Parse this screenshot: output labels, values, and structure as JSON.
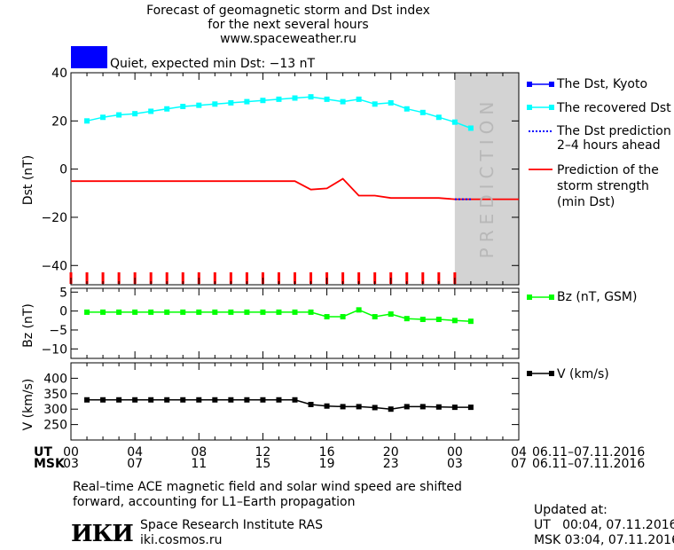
{
  "header": {
    "title_line1": "Forecast of geomagnetic storm and Dst index",
    "title_line2": "for the next several hours",
    "website": "www.spaceweather.ru",
    "status_color": "#0000ff",
    "status_text": "Quiet, expected min Dst: −13 nT"
  },
  "legend": {
    "dst_kyoto": "The Dst, Kyoto",
    "recovered_dst": "The recovered Dst",
    "dst_prediction_line1": "The Dst prediction",
    "dst_prediction_line2": "2–4 hours ahead",
    "storm_line1": "Prediction of the",
    "storm_line2": "storm strength",
    "storm_line3": "(min Dst)",
    "bz": "Bz (nT, GSM)",
    "v": "V (km/s)"
  },
  "prediction_label": "PREDICTION",
  "time_axis": {
    "ut_label": "UT",
    "msk_label": "MSK",
    "ut_ticks": [
      "00",
      "04",
      "08",
      "12",
      "16",
      "20",
      "00",
      "04"
    ],
    "msk_ticks": [
      "03",
      "07",
      "11",
      "15",
      "19",
      "23",
      "03",
      "07"
    ],
    "ut_range": "06.11–07.11.2016",
    "msk_range": "06.11–07.11.2016"
  },
  "footer": {
    "note_line1": "Real–time ACE magnetic field and solar wind speed are shifted",
    "note_line2": "forward, accounting for L1–Earth propagation",
    "logo_text": "ИКИ",
    "institute": "Space Research Institute RAS",
    "institute_url": "iki.cosmos.ru",
    "updated_label": "Updated at:",
    "updated_ut": "UT   00:04, 07.11.2016",
    "updated_msk": "MSK 03:04, 07.11.2016"
  },
  "colors": {
    "recovered_dst": "#00ffff",
    "storm_strength": "#ff0000",
    "dst_kyoto": "#0000ff",
    "dst_prediction": "#0000ff",
    "bz": "#00ff00",
    "v": "#000000",
    "prediction_shade": "#d3d3d3"
  },
  "chart_data": [
    {
      "type": "line",
      "ylabel": "Dst (nT)",
      "ylim": [
        -48,
        40
      ],
      "yticks": [
        40,
        20,
        0,
        -20,
        -40
      ],
      "xlim": [
        0,
        28
      ],
      "prediction_start": 24,
      "series": [
        {
          "name": "The recovered Dst",
          "x": [
            1,
            2,
            3,
            4,
            5,
            6,
            7,
            8,
            9,
            10,
            11,
            12,
            13,
            14,
            15,
            16,
            17,
            18,
            19,
            20,
            21,
            22,
            23,
            24,
            25
          ],
          "y": [
            20,
            21.5,
            22.5,
            23,
            24,
            25,
            26,
            26.5,
            27,
            27.5,
            28,
            28.5,
            29,
            29.5,
            30,
            29,
            28,
            29,
            27,
            27.5,
            25,
            23.5,
            21.5,
            19.5,
            17
          ]
        },
        {
          "name": "Prediction of the storm strength (min Dst)",
          "x": [
            0,
            14,
            15,
            16,
            17,
            18,
            19,
            20,
            21,
            22,
            23,
            24,
            25,
            26,
            27,
            28
          ],
          "y": [
            -5,
            -5,
            -8.5,
            -8,
            -4,
            -11,
            -11,
            -12,
            -12,
            -12,
            -12,
            -12.5,
            -12.5,
            -12.5,
            -12.5,
            -12.5
          ]
        },
        {
          "name": "The Dst prediction 2–4 hours ahead",
          "x": [
            24,
            25
          ],
          "y": [
            -12.5,
            -12.5
          ]
        }
      ],
      "storm_marks_x": [
        0,
        1,
        2,
        3,
        4,
        5,
        6,
        7,
        8,
        9,
        10,
        11,
        12,
        13,
        14,
        15,
        16,
        17,
        18,
        19,
        20,
        21,
        22,
        23,
        24
      ]
    },
    {
      "type": "line",
      "ylabel": "Bz (nT)",
      "ylim": [
        -12.5,
        6
      ],
      "yticks": [
        5,
        0,
        -5,
        -10
      ],
      "xlim": [
        0,
        28
      ],
      "series": [
        {
          "name": "Bz (nT, GSM)",
          "x": [
            1,
            2,
            3,
            4,
            5,
            6,
            7,
            8,
            9,
            10,
            11,
            12,
            13,
            14,
            15,
            16,
            17,
            18,
            19,
            20,
            21,
            22,
            23,
            24,
            25
          ],
          "y": [
            -0.3,
            -0.3,
            -0.3,
            -0.3,
            -0.3,
            -0.3,
            -0.3,
            -0.3,
            -0.3,
            -0.3,
            -0.3,
            -0.3,
            -0.3,
            -0.3,
            -0.3,
            -1.5,
            -1.5,
            0.3,
            -1.5,
            -0.8,
            -2,
            -2.2,
            -2.2,
            -2.5,
            -2.7
          ]
        }
      ]
    },
    {
      "type": "line",
      "ylabel": "V (km/s)",
      "ylim": [
        200,
        450
      ],
      "yticks": [
        400,
        350,
        300,
        250
      ],
      "xlim": [
        0,
        28
      ],
      "series": [
        {
          "name": "V (km/s)",
          "x": [
            1,
            2,
            3,
            4,
            5,
            6,
            7,
            8,
            9,
            10,
            11,
            12,
            13,
            14,
            15,
            16,
            17,
            18,
            19,
            20,
            21,
            22,
            23,
            24,
            25
          ],
          "y": [
            330,
            330,
            330,
            330,
            330,
            330,
            330,
            330,
            330,
            330,
            330,
            330,
            330,
            330,
            315,
            310,
            308,
            308,
            305,
            300,
            308,
            308,
            307,
            306,
            306
          ]
        }
      ]
    }
  ]
}
